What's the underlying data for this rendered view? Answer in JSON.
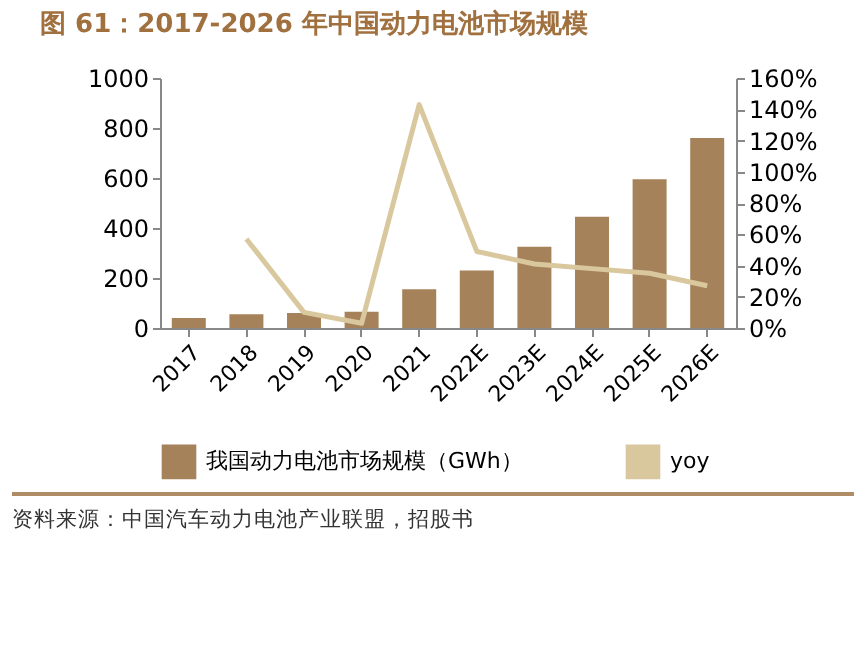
{
  "chart_data": {
    "type": "bar",
    "title": "图 61：2017-2026 年中国动力电池市场规模",
    "categories": [
      "2017",
      "2018",
      "2019",
      "2020",
      "2021",
      "2022E",
      "2023E",
      "2024E",
      "2025E",
      "2026E"
    ],
    "series": [
      {
        "name": "我国动力电池市场规模（GWh）",
        "color": "#a6825a",
        "values": [
          40,
          55,
          60,
          65,
          155,
          230,
          325,
          445,
          595,
          760
        ]
      },
      {
        "name": "yoy",
        "type": "line",
        "axis": "y2",
        "color": "#d9c89e",
        "values": [
          null,
          57,
          10,
          3,
          143,
          49,
          41,
          38,
          35,
          27
        ]
      }
    ],
    "ylim": [
      0,
      1000
    ],
    "yticks": [
      0,
      200,
      400,
      600,
      800,
      1000
    ],
    "y2lim": [
      0,
      160
    ],
    "y2ticks": [
      {
        "value": 0,
        "label": "0%"
      },
      {
        "value": 20,
        "label": "20%"
      },
      {
        "value": 40,
        "label": "40%"
      },
      {
        "value": 60,
        "label": "60%"
      },
      {
        "value": 80,
        "label": "80%"
      },
      {
        "value": 100,
        "label": "100%"
      },
      {
        "value": 120,
        "label": "120%"
      },
      {
        "value": 140,
        "label": "140%"
      },
      {
        "value": 160,
        "label": "160%"
      }
    ],
    "grid": false,
    "legend": "bottom",
    "annotations": [
      "资料来源：中国汽车动力电池产业联盟，招股书"
    ]
  }
}
